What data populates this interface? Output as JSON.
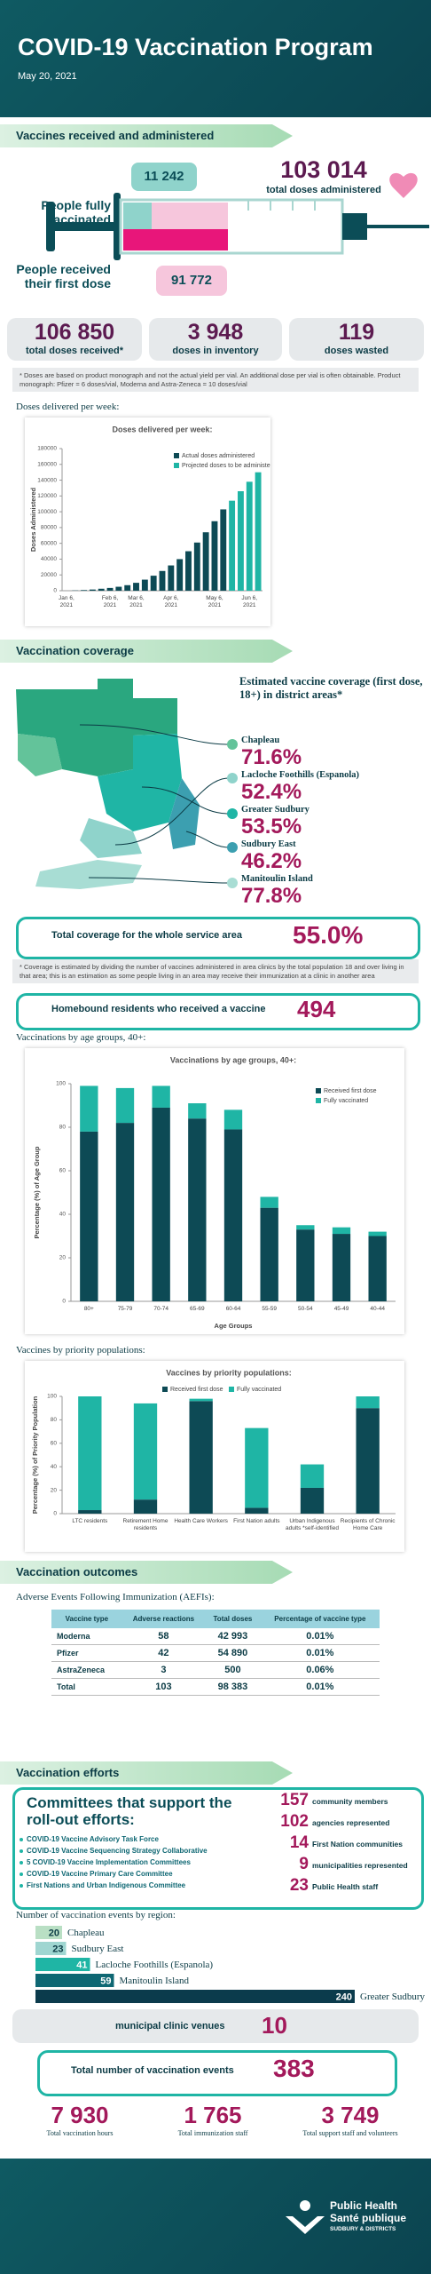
{
  "header": {
    "title": "COVID-19 Vaccination Program",
    "date": "May 20, 2021"
  },
  "sections": [
    "Vaccines received and administered",
    "Vaccination coverage",
    "Vaccination outcomes",
    "Vaccination efforts"
  ],
  "doses": {
    "administered": "103 014",
    "administered_label": "total doses administered",
    "fully": "11 242",
    "fully_label": "People fully vaccinated",
    "first": "91 772",
    "first_label": "People received their first dose"
  },
  "stats": [
    {
      "value": "106 850",
      "label": "total doses received*"
    },
    {
      "value": "3 948",
      "label": "doses in inventory"
    },
    {
      "value": "119",
      "label": "doses wasted"
    }
  ],
  "notes": {
    "doses": "* Doses are based on product monograph and not the actual yield per vial. An additional dose per vial is often obtainable. Product monograph: Pfizer = 6 doses/vial, Moderna and Astra-Zeneca = 10 doses/vial",
    "coverage": "* Coverage is estimated by dividing the number of vaccines administered in area clinics by the total population 18 and over living in that area; this is an estimation as some people living in an area may receive their immunization at a clinic in another area"
  },
  "doses_heading": "Doses delivered per week:",
  "coverage": {
    "title": "Estimated vaccine coverage (first dose, 18+) in district areas*",
    "areas": [
      {
        "name": "Chapleau",
        "value": "71.6%"
      },
      {
        "name": "Lacloche Foothills (Espanola)",
        "value": "52.4%"
      },
      {
        "name": "Greater Sudbury",
        "value": "53.5%"
      },
      {
        "name": "Sudbury East",
        "value": "46.2%"
      },
      {
        "name": "Manitoulin Island",
        "value": "77.8%"
      }
    ],
    "total_label": "Total coverage for the whole service area",
    "total": "55.0%",
    "homebound_label": "Homebound residents who received a vaccine",
    "homebound": "494"
  },
  "age_heading": "Vaccinations by age groups, 40+:",
  "priority_heading": "Vaccines by priority populations:",
  "aefi": {
    "heading": "Adverse Events Following Immunization (AEFIs):",
    "columns": [
      "Vaccine type",
      "Adverse reactions",
      "Total doses",
      "Percentage of vaccine type"
    ],
    "rows": [
      [
        "Moderna",
        "58",
        "42 993",
        "0.01%"
      ],
      [
        "Pfizer",
        "42",
        "54 890",
        "0.01%"
      ],
      [
        "AstraZeneca",
        "3",
        "500",
        "0.06%"
      ],
      [
        "Total",
        "103",
        "98 383",
        "0.01%"
      ]
    ]
  },
  "committees": {
    "title": "Committees that support the roll-out efforts:",
    "items": [
      "COVID-19 Vaccine Advisory Task Force",
      "COVID-19 Vaccine Sequencing Strategy Collaborative",
      "5 COVID-19 Vaccine Implementation Committees",
      "COVID-19 Vaccine Primary Care Committee",
      "First Nations and Urban Indigenous Committee"
    ],
    "counts": [
      {
        "value": "157",
        "label": "community members"
      },
      {
        "value": "102",
        "label": "agencies represented"
      },
      {
        "value": "14",
        "label": "First Nation communities"
      },
      {
        "value": "9",
        "label": "municipalities represented"
      },
      {
        "value": "23",
        "label": "Public Health staff"
      }
    ]
  },
  "events_heading": "Number of vaccination events by region:",
  "venues": {
    "label": "municipal clinic venues",
    "value": "10"
  },
  "events_total": {
    "label": "Total number of vaccination events",
    "value": "383"
  },
  "totals": [
    {
      "value": "7 930",
      "label": "Total vaccination hours"
    },
    {
      "value": "1 765",
      "label": "Total immunization staff"
    },
    {
      "value": "3 749",
      "label": "Total support staff and volunteers"
    }
  ],
  "footer": {
    "name_en": "Public Health",
    "name_fr": "Santé publique",
    "district": "SUDBURY & DISTRICTS"
  },
  "chart_data": [
    {
      "type": "bar",
      "title": "Doses delivered per week:",
      "y_label": "Doses Administered",
      "categories": [
        "Jan 6, 2021",
        null,
        null,
        null,
        null,
        "Feb 6, 2021",
        null,
        null,
        "Mar 6, 2021",
        null,
        null,
        null,
        "Apr 6, 2021",
        null,
        null,
        null,
        null,
        "May 6, 2021",
        null,
        null,
        null,
        "Jun 6, 2021",
        null
      ],
      "series": [
        {
          "name": "Actual doses administered",
          "color": "#0d4a55",
          "values": [
            0,
            300,
            800,
            1500,
            2500,
            3500,
            5000,
            7000,
            10000,
            14000,
            19000,
            25000,
            32000,
            40000,
            50000,
            61000,
            74000,
            88000,
            103000,
            null,
            null,
            null,
            null
          ]
        },
        {
          "name": "Projected doses to be administered",
          "color": "#1fb5a5",
          "values": [
            null,
            null,
            null,
            null,
            null,
            null,
            null,
            null,
            null,
            null,
            null,
            null,
            null,
            null,
            null,
            null,
            null,
            null,
            null,
            114000,
            126000,
            138000,
            150000
          ]
        }
      ],
      "ylim": [
        0,
        180000
      ],
      "yticks": [
        0,
        20000,
        40000,
        60000,
        80000,
        100000,
        120000,
        140000,
        160000,
        180000
      ],
      "grid": false,
      "legend": "upper right"
    },
    {
      "type": "bar",
      "stacked": true,
      "title": "Vaccinations by age groups, 40+:",
      "x_label": "Age Groups",
      "y_label": "Percentage (%) of Age Group",
      "categories": [
        "80+",
        "75-79",
        "70-74",
        "65-69",
        "60-64",
        "55-59",
        "50-54",
        "45-49",
        "40-44"
      ],
      "series": [
        {
          "name": "Received first dose",
          "color": "#0d4a55",
          "values": [
            78,
            82,
            89,
            84,
            79,
            43,
            33,
            31,
            30
          ]
        },
        {
          "name": "Fully vaccinated",
          "color": "#1fb5a5",
          "values": [
            21,
            16,
            10,
            7,
            9,
            5,
            2,
            3,
            2
          ]
        }
      ],
      "ylim": [
        0,
        100
      ],
      "yticks": [
        0,
        20,
        40,
        60,
        80,
        100
      ],
      "grid": false,
      "legend": "upper right"
    },
    {
      "type": "bar",
      "stacked": true,
      "title": "Vaccines by priority populations:",
      "y_label": "Percentage (%) of Priority Population",
      "categories": [
        "LTC residents",
        "Retirement Home residents",
        "Health Care Workers",
        "First Nation adults",
        "Urban Indigenous adults *self-identified",
        "Recipients of Chronic Home Care"
      ],
      "series": [
        {
          "name": "Received first dose",
          "color": "#0d4a55",
          "values": [
            3,
            12,
            96,
            5,
            22,
            90
          ]
        },
        {
          "name": "Fully vaccinated",
          "color": "#1fb5a5",
          "values": [
            97,
            82,
            2,
            68,
            20,
            10
          ]
        }
      ],
      "ylim": [
        0,
        100
      ],
      "yticks": [
        0,
        20,
        40,
        60,
        80,
        100
      ],
      "grid": false,
      "legend": "upper center"
    },
    {
      "type": "barh",
      "categories": [
        "Chapleau",
        "Sudbury East",
        "Lacloche Foothills (Espanola)",
        "Manitoulin Island",
        "Greater Sudbury"
      ],
      "values": [
        20,
        23,
        41,
        59,
        240
      ],
      "colors": [
        "#b9dfc4",
        "#9fd6d1",
        "#1fb5a5",
        "#0e6773",
        "#0b3b4c"
      ]
    }
  ]
}
